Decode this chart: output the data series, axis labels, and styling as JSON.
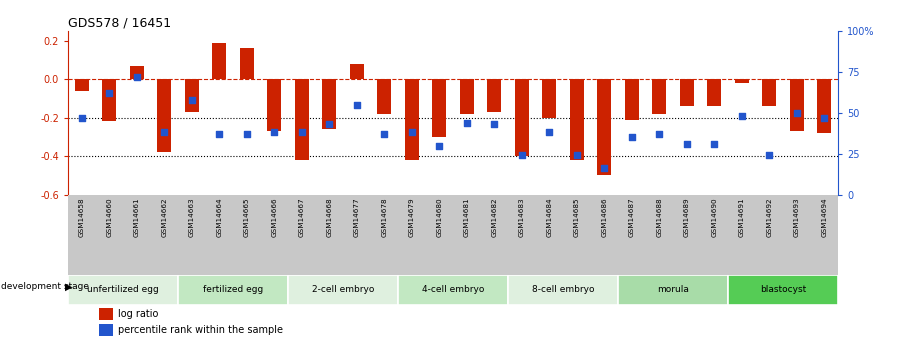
{
  "title": "GDS578 / 16451",
  "samples": [
    "GSM14658",
    "GSM14660",
    "GSM14661",
    "GSM14662",
    "GSM14663",
    "GSM14664",
    "GSM14665",
    "GSM14666",
    "GSM14667",
    "GSM14668",
    "GSM14677",
    "GSM14678",
    "GSM14679",
    "GSM14680",
    "GSM14681",
    "GSM14682",
    "GSM14683",
    "GSM14684",
    "GSM14685",
    "GSM14686",
    "GSM14687",
    "GSM14688",
    "GSM14689",
    "GSM14690",
    "GSM14691",
    "GSM14692",
    "GSM14693",
    "GSM14694"
  ],
  "log_ratio": [
    -0.06,
    -0.22,
    0.07,
    -0.38,
    -0.17,
    0.19,
    0.16,
    -0.27,
    -0.42,
    -0.26,
    0.08,
    -0.18,
    -0.42,
    -0.3,
    -0.18,
    -0.17,
    -0.4,
    -0.2,
    -0.42,
    -0.5,
    -0.21,
    -0.18,
    -0.14,
    -0.14,
    -0.02,
    -0.14,
    -0.27,
    -0.28
  ],
  "percentile_rank": [
    47,
    62,
    72,
    38,
    58,
    37,
    37,
    38,
    38,
    43,
    55,
    37,
    38,
    30,
    44,
    43,
    24,
    38,
    24,
    16,
    35,
    37,
    31,
    31,
    48,
    24,
    50,
    47
  ],
  "ylim_left": [
    -0.6,
    0.25
  ],
  "ylim_right": [
    0,
    100
  ],
  "yticks_left": [
    -0.6,
    -0.4,
    -0.2,
    0.0,
    0.2
  ],
  "yticks_right": [
    0,
    25,
    50,
    75,
    100
  ],
  "hline_y": 0.0,
  "dotted_lines": [
    -0.2,
    -0.4
  ],
  "stages": [
    {
      "label": "unfertilized egg",
      "start": 0,
      "end": 4,
      "color": "#dff0df"
    },
    {
      "label": "fertilized egg",
      "start": 4,
      "end": 8,
      "color": "#c2e8c2"
    },
    {
      "label": "2-cell embryo",
      "start": 8,
      "end": 12,
      "color": "#dff0df"
    },
    {
      "label": "4-cell embryo",
      "start": 12,
      "end": 16,
      "color": "#c2e8c2"
    },
    {
      "label": "8-cell embryo",
      "start": 16,
      "end": 20,
      "color": "#dff0df"
    },
    {
      "label": "morula",
      "start": 20,
      "end": 24,
      "color": "#a8dca8"
    },
    {
      "label": "blastocyst",
      "start": 24,
      "end": 28,
      "color": "#55cc55"
    }
  ],
  "bar_color": "#cc2200",
  "dot_color": "#2255cc",
  "bar_width": 0.5,
  "bg_color": "#ffffff",
  "stage_bg": "#c8c8c8"
}
